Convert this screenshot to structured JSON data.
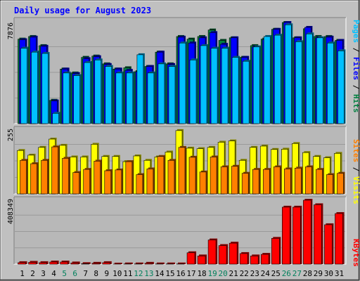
{
  "chart_data": [
    {
      "type": "bar",
      "panel": "hits-files-pages",
      "title": "Daily usage for August 2023",
      "ytick_label": "7876",
      "ylim": [
        0,
        7876
      ],
      "legend": [
        {
          "label": "Pages",
          "color": "#00c0ff"
        },
        {
          "label": "Files",
          "color": "#0000ff"
        },
        {
          "label": "Hits",
          "color": "#008040"
        }
      ],
      "x": [
        1,
        2,
        3,
        4,
        5,
        6,
        7,
        8,
        9,
        10,
        11,
        12,
        13,
        14,
        15,
        16,
        17,
        18,
        19,
        20,
        21,
        22,
        23,
        24,
        25,
        26,
        27,
        28,
        29,
        30,
        31
      ],
      "series": [
        {
          "name": "Hits",
          "values": [
            6600,
            6800,
            6100,
            1900,
            4300,
            4000,
            5200,
            5300,
            4700,
            4300,
            4400,
            4100,
            4500,
            5600,
            4700,
            6800,
            6600,
            6800,
            7300,
            6500,
            6700,
            5200,
            6100,
            6600,
            7350,
            7876,
            6700,
            7400,
            6800,
            6800,
            6500
          ]
        },
        {
          "name": "Files",
          "values": [
            6550,
            6750,
            6050,
            1850,
            4300,
            3950,
            5100,
            5250,
            4650,
            4300,
            4200,
            4100,
            4500,
            5600,
            4650,
            6750,
            6300,
            6700,
            7100,
            6200,
            6700,
            5200,
            6000,
            6550,
            7350,
            7876,
            6700,
            7500,
            6700,
            6750,
            6500
          ]
        },
        {
          "name": "Pages",
          "values": [
            5900,
            5600,
            5500,
            900,
            4000,
            3800,
            4800,
            5000,
            4500,
            4000,
            4000,
            5400,
            4000,
            4700,
            4500,
            6300,
            5000,
            6100,
            5900,
            5900,
            5200,
            4900,
            6000,
            6800,
            6900,
            7700,
            6400,
            7000,
            6700,
            6300,
            5700
          ]
        }
      ]
    },
    {
      "type": "bar",
      "panel": "visits-sites",
      "ytick_label": "255",
      "ylim": [
        0,
        255
      ],
      "legend": [
        {
          "label": "Sites",
          "color": "#ff8000"
        },
        {
          "label": "Visits",
          "color": "#ffff00"
        }
      ],
      "x": [
        1,
        2,
        3,
        4,
        5,
        6,
        7,
        8,
        9,
        10,
        11,
        12,
        13,
        14,
        15,
        16,
        17,
        18,
        19,
        20,
        21,
        22,
        23,
        24,
        25,
        26,
        27,
        28,
        29,
        30,
        31
      ],
      "series": [
        {
          "name": "Visits",
          "values": [
            173,
            155,
            185,
            217,
            193,
            148,
            148,
            197,
            150,
            150,
            130,
            152,
            135,
            148,
            167,
            250,
            182,
            180,
            185,
            205,
            210,
            135,
            185,
            190,
            177,
            178,
            200,
            165,
            150,
            145,
            162
          ]
        },
        {
          "name": "Sites",
          "values": [
            135,
            122,
            135,
            187,
            143,
            88,
            100,
            132,
            95,
            98,
            130,
            80,
            102,
            150,
            135,
            185,
            147,
            90,
            148,
            110,
            112,
            85,
            100,
            100,
            110,
            102,
            105,
            110,
            100,
            80,
            85
          ]
        }
      ]
    },
    {
      "type": "bar",
      "panel": "kbytes",
      "ytick_label": "408349",
      "ylim": [
        0,
        408349
      ],
      "legend": [
        {
          "label": "KBytes",
          "color": "#ff0000"
        }
      ],
      "x": [
        1,
        2,
        3,
        4,
        5,
        6,
        7,
        8,
        9,
        10,
        11,
        12,
        13,
        14,
        15,
        16,
        17,
        18,
        19,
        20,
        21,
        22,
        23,
        24,
        25,
        26,
        27,
        28,
        29,
        30,
        31
      ],
      "values": [
        18000,
        20000,
        18000,
        22000,
        22000,
        16000,
        12000,
        14000,
        18000,
        9000,
        10000,
        10000,
        14000,
        10000,
        10000,
        10000,
        80000,
        60000,
        160000,
        125000,
        140000,
        75000,
        60000,
        70000,
        170000,
        365000,
        365000,
        408349,
        380000,
        255000,
        325000
      ],
      "weekend_days": [
        5,
        6,
        12,
        13,
        19,
        20,
        26,
        27
      ]
    }
  ]
}
